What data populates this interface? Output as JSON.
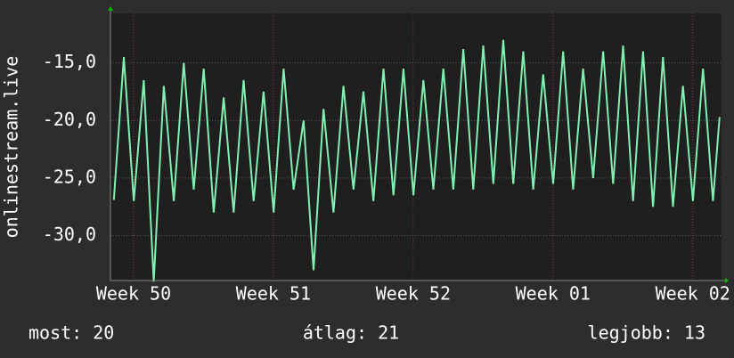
{
  "chart_data": {
    "type": "line",
    "ylabel": "onlinestream.live",
    "x": [
      0.17,
      0.67,
      1.17,
      1.67,
      2.17,
      2.67,
      3.17,
      3.67,
      4.17,
      4.67,
      5.17,
      5.67,
      6.17,
      6.67,
      7.17,
      7.67,
      8.17,
      8.67,
      9.17,
      9.67,
      10.17,
      10.67,
      11.17,
      11.67,
      12.17,
      12.67,
      13.17,
      13.67,
      14.17,
      14.67,
      15.17,
      15.67,
      16.17,
      16.67,
      17.17,
      17.67,
      18.17,
      18.67,
      19.17,
      19.67,
      20.17,
      20.67,
      21.17,
      21.67,
      22.17,
      22.67,
      23.17,
      23.67,
      24.17,
      24.67,
      25.17,
      25.67,
      26.17,
      26.67,
      27.17,
      27.67,
      28.17,
      28.67,
      29.17,
      29.67,
      30.17,
      30.5
    ],
    "series": [
      {
        "color": "#80f0b0",
        "values": [
          -26.9,
          -14.5,
          -27,
          -16.5,
          -34,
          -17,
          -27,
          -15,
          -26,
          -15.5,
          -28,
          -18,
          -28,
          -16.5,
          -27,
          -17.5,
          -28,
          -15.5,
          -26,
          -20,
          -33,
          -19,
          -28,
          -17,
          -26,
          -17.5,
          -27,
          -15.5,
          -26.5,
          -15.5,
          -26.5,
          -16.5,
          -26,
          -15.5,
          -26,
          -13.8,
          -26,
          -13.5,
          -25.5,
          -13,
          -25.5,
          -14,
          -26,
          -16,
          -25.5,
          -14,
          -26,
          -15.5,
          -25,
          -14,
          -25.5,
          -13.5,
          -27,
          -14,
          -27.5,
          -14.5,
          -27.5,
          -17,
          -27,
          -15.5,
          -27,
          -19.7
        ]
      }
    ],
    "xlim": [
      0,
      30.6
    ],
    "xticks": [
      {
        "value": 1.16,
        "label": "Week 50"
      },
      {
        "value": 8.16,
        "label": "Week 51"
      },
      {
        "value": 15.16,
        "label": "Week 52"
      },
      {
        "value": 22.16,
        "label": "Week 01"
      },
      {
        "value": 29.16,
        "label": "Week 02"
      }
    ],
    "ylim": [
      -33.9,
      -10.7
    ],
    "yticks": [
      {
        "value": -15,
        "label": "-15,0"
      },
      {
        "value": -20,
        "label": "-20,0"
      },
      {
        "value": -25,
        "label": "-25,0"
      },
      {
        "value": -30,
        "label": "-30,0"
      }
    ],
    "grid": true,
    "stats": [
      "most: 20",
      "átlag: 21",
      "legjobb: 13"
    ]
  }
}
